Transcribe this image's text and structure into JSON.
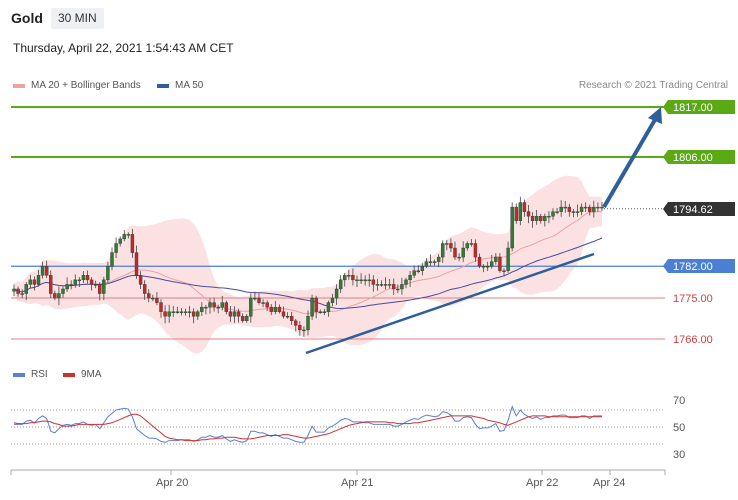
{
  "header": {
    "symbol": "Gold",
    "timeframe": "30 MIN"
  },
  "datetime": "Thursday, April 22, 2021 1:54:43 AM CET",
  "legend": {
    "ma20_label": "MA 20 + Bollinger Bands",
    "ma50_label": "MA 50",
    "rsi_label": "RSI",
    "ma9_label": "9MA",
    "copyright": "Research © 2021 Trading Central"
  },
  "colors": {
    "resistance": "#5aa915",
    "support": "#e08080",
    "pivot": "#4a7fd4",
    "current": "#333333",
    "arrow": "#2f5f9a",
    "bollinger": "#fadadb",
    "ma20": "#e9a3a3",
    "ma50": "#4a4aa0",
    "candle_up": "#2e7d32",
    "candle_down": "#c62828",
    "rsi": "#5a7fd6",
    "ma9": "#d03030"
  },
  "chart_data": [
    {
      "type": "candlestick",
      "title": "Gold",
      "timeframe": "30 MIN",
      "x_ticks": [
        "Apr 20",
        "Apr 21",
        "Apr 22",
        "Apr 24"
      ],
      "ylim": [
        1760,
        1822
      ],
      "levels": [
        {
          "label": "1817.00",
          "value": 1817.0,
          "kind": "resistance"
        },
        {
          "label": "1806.00",
          "value": 1806.0,
          "kind": "resistance"
        },
        {
          "label": "1794.62",
          "value": 1794.62,
          "kind": "current"
        },
        {
          "label": "1782.00",
          "value": 1782.0,
          "kind": "pivot"
        },
        {
          "label": "1775.00",
          "value": 1775.0,
          "kind": "support"
        },
        {
          "label": "1766.00",
          "value": 1766.0,
          "kind": "support"
        }
      ],
      "series": [
        {
          "name": "MA 20 + Bollinger Bands"
        },
        {
          "name": "MA 50"
        }
      ],
      "close": [
        1777,
        1776,
        1776,
        1778,
        1779,
        1778,
        1780,
        1782,
        1780,
        1776,
        1775,
        1776,
        1777,
        1778,
        1778,
        1779,
        1779,
        1780,
        1779,
        1778,
        1778,
        1776,
        1779,
        1782,
        1785,
        1787,
        1788,
        1789,
        1789,
        1785,
        1780,
        1778,
        1776,
        1775,
        1775,
        1774,
        1772,
        1771,
        1772,
        1772,
        1772,
        1772,
        1772,
        1772,
        1771,
        1772,
        1773,
        1773,
        1774,
        1773,
        1773,
        1774,
        1772,
        1771,
        1772,
        1771,
        1770,
        1771,
        1775,
        1775,
        1774,
        1774,
        1773,
        1772,
        1773,
        1772,
        1771,
        1771,
        1770,
        1769,
        1768,
        1768,
        1771,
        1775,
        1772,
        1772,
        1772,
        1774,
        1775,
        1777,
        1779,
        1780,
        1780,
        1779,
        1779,
        1779,
        1779,
        1779,
        1778,
        1778,
        1778,
        1778,
        1778,
        1777,
        1777,
        1778,
        1779,
        1780,
        1781,
        1781,
        1782,
        1783,
        1783,
        1783,
        1784,
        1787,
        1787,
        1786,
        1784,
        1784,
        1786,
        1787,
        1787,
        1784,
        1782,
        1782,
        1782,
        1783,
        1784,
        1781,
        1781,
        1786,
        1795,
        1792,
        1796,
        1794,
        1793,
        1792,
        1793,
        1792,
        1793,
        1793,
        1794,
        1794,
        1795,
        1795,
        1794,
        1794,
        1794,
        1795,
        1795,
        1794,
        1795,
        1795,
        1795
      ],
      "rsi": {
        "ylim": [
          25,
          80
        ],
        "ticks": [
          30,
          50,
          70
        ],
        "rsi": [
          53,
          53,
          53,
          57,
          58,
          55,
          60,
          63,
          60,
          45,
          43,
          48,
          52,
          53,
          52,
          54,
          54,
          56,
          53,
          52,
          53,
          48,
          55,
          62,
          66,
          70,
          71,
          72,
          71,
          62,
          48,
          44,
          40,
          37,
          37,
          36,
          33,
          32,
          34,
          34,
          34,
          35,
          35,
          35,
          33,
          35,
          38,
          38,
          40,
          38,
          38,
          40,
          36,
          33,
          35,
          33,
          32,
          34,
          45,
          45,
          43,
          43,
          41,
          39,
          41,
          39,
          37,
          37,
          35,
          33,
          32,
          32,
          40,
          51,
          44,
          44,
          44,
          49,
          51,
          54,
          58,
          60,
          59,
          56,
          56,
          56,
          55,
          55,
          53,
          53,
          53,
          53,
          53,
          51,
          51,
          53,
          56,
          58,
          60,
          59,
          62,
          64,
          63,
          62,
          63,
          68,
          67,
          64,
          57,
          57,
          61,
          62,
          61,
          53,
          48,
          49,
          49,
          51,
          54,
          45,
          46,
          58,
          74,
          63,
          70,
          65,
          62,
          60,
          62,
          59,
          61,
          61,
          63,
          63,
          64,
          64,
          61,
          61,
          61,
          63,
          63,
          60,
          63,
          63,
          63
        ],
        "ma9": [
          55,
          54,
          54,
          54,
          55,
          55,
          56,
          57,
          57,
          56,
          54,
          53,
          51,
          51,
          51,
          52,
          53,
          53,
          53,
          53,
          53,
          53,
          53,
          54,
          55,
          57,
          59,
          61,
          63,
          65,
          65,
          63,
          59,
          55,
          51,
          47,
          43,
          39,
          37,
          36,
          35,
          35,
          34,
          34,
          34,
          34,
          35,
          35,
          36,
          36,
          37,
          37,
          38,
          38,
          38,
          37,
          36,
          36,
          36,
          37,
          38,
          39,
          40,
          40,
          40,
          40,
          41,
          41,
          40,
          39,
          38,
          37,
          37,
          38,
          39,
          40,
          41,
          42,
          44,
          46,
          48,
          50,
          52,
          53,
          54,
          55,
          56,
          56,
          56,
          56,
          56,
          56,
          55,
          55,
          54,
          54,
          54,
          54,
          55,
          55,
          56,
          57,
          58,
          59,
          60,
          61,
          62,
          63,
          63,
          63,
          63,
          63,
          63,
          62,
          61,
          60,
          58,
          57,
          56,
          55,
          53,
          52,
          54,
          56,
          58,
          60,
          62,
          63,
          63,
          63,
          63,
          62,
          62,
          62,
          62,
          62,
          62,
          62,
          62,
          62,
          62,
          62,
          62,
          62,
          62
        ]
      }
    }
  ],
  "price_labels": {
    "l1817": "1817.00",
    "l1806": "1806.00",
    "l1794": "1794.62",
    "l1782": "1782.00",
    "l1775": "1775.00",
    "l1766": "1766.00"
  },
  "rsi_labels": {
    "r70": "70",
    "r50": "50",
    "r30": "30"
  },
  "x_labels": {
    "apr20": "Apr 20",
    "apr21": "Apr 21",
    "apr22": "Apr 22",
    "apr24": "Apr 24"
  }
}
